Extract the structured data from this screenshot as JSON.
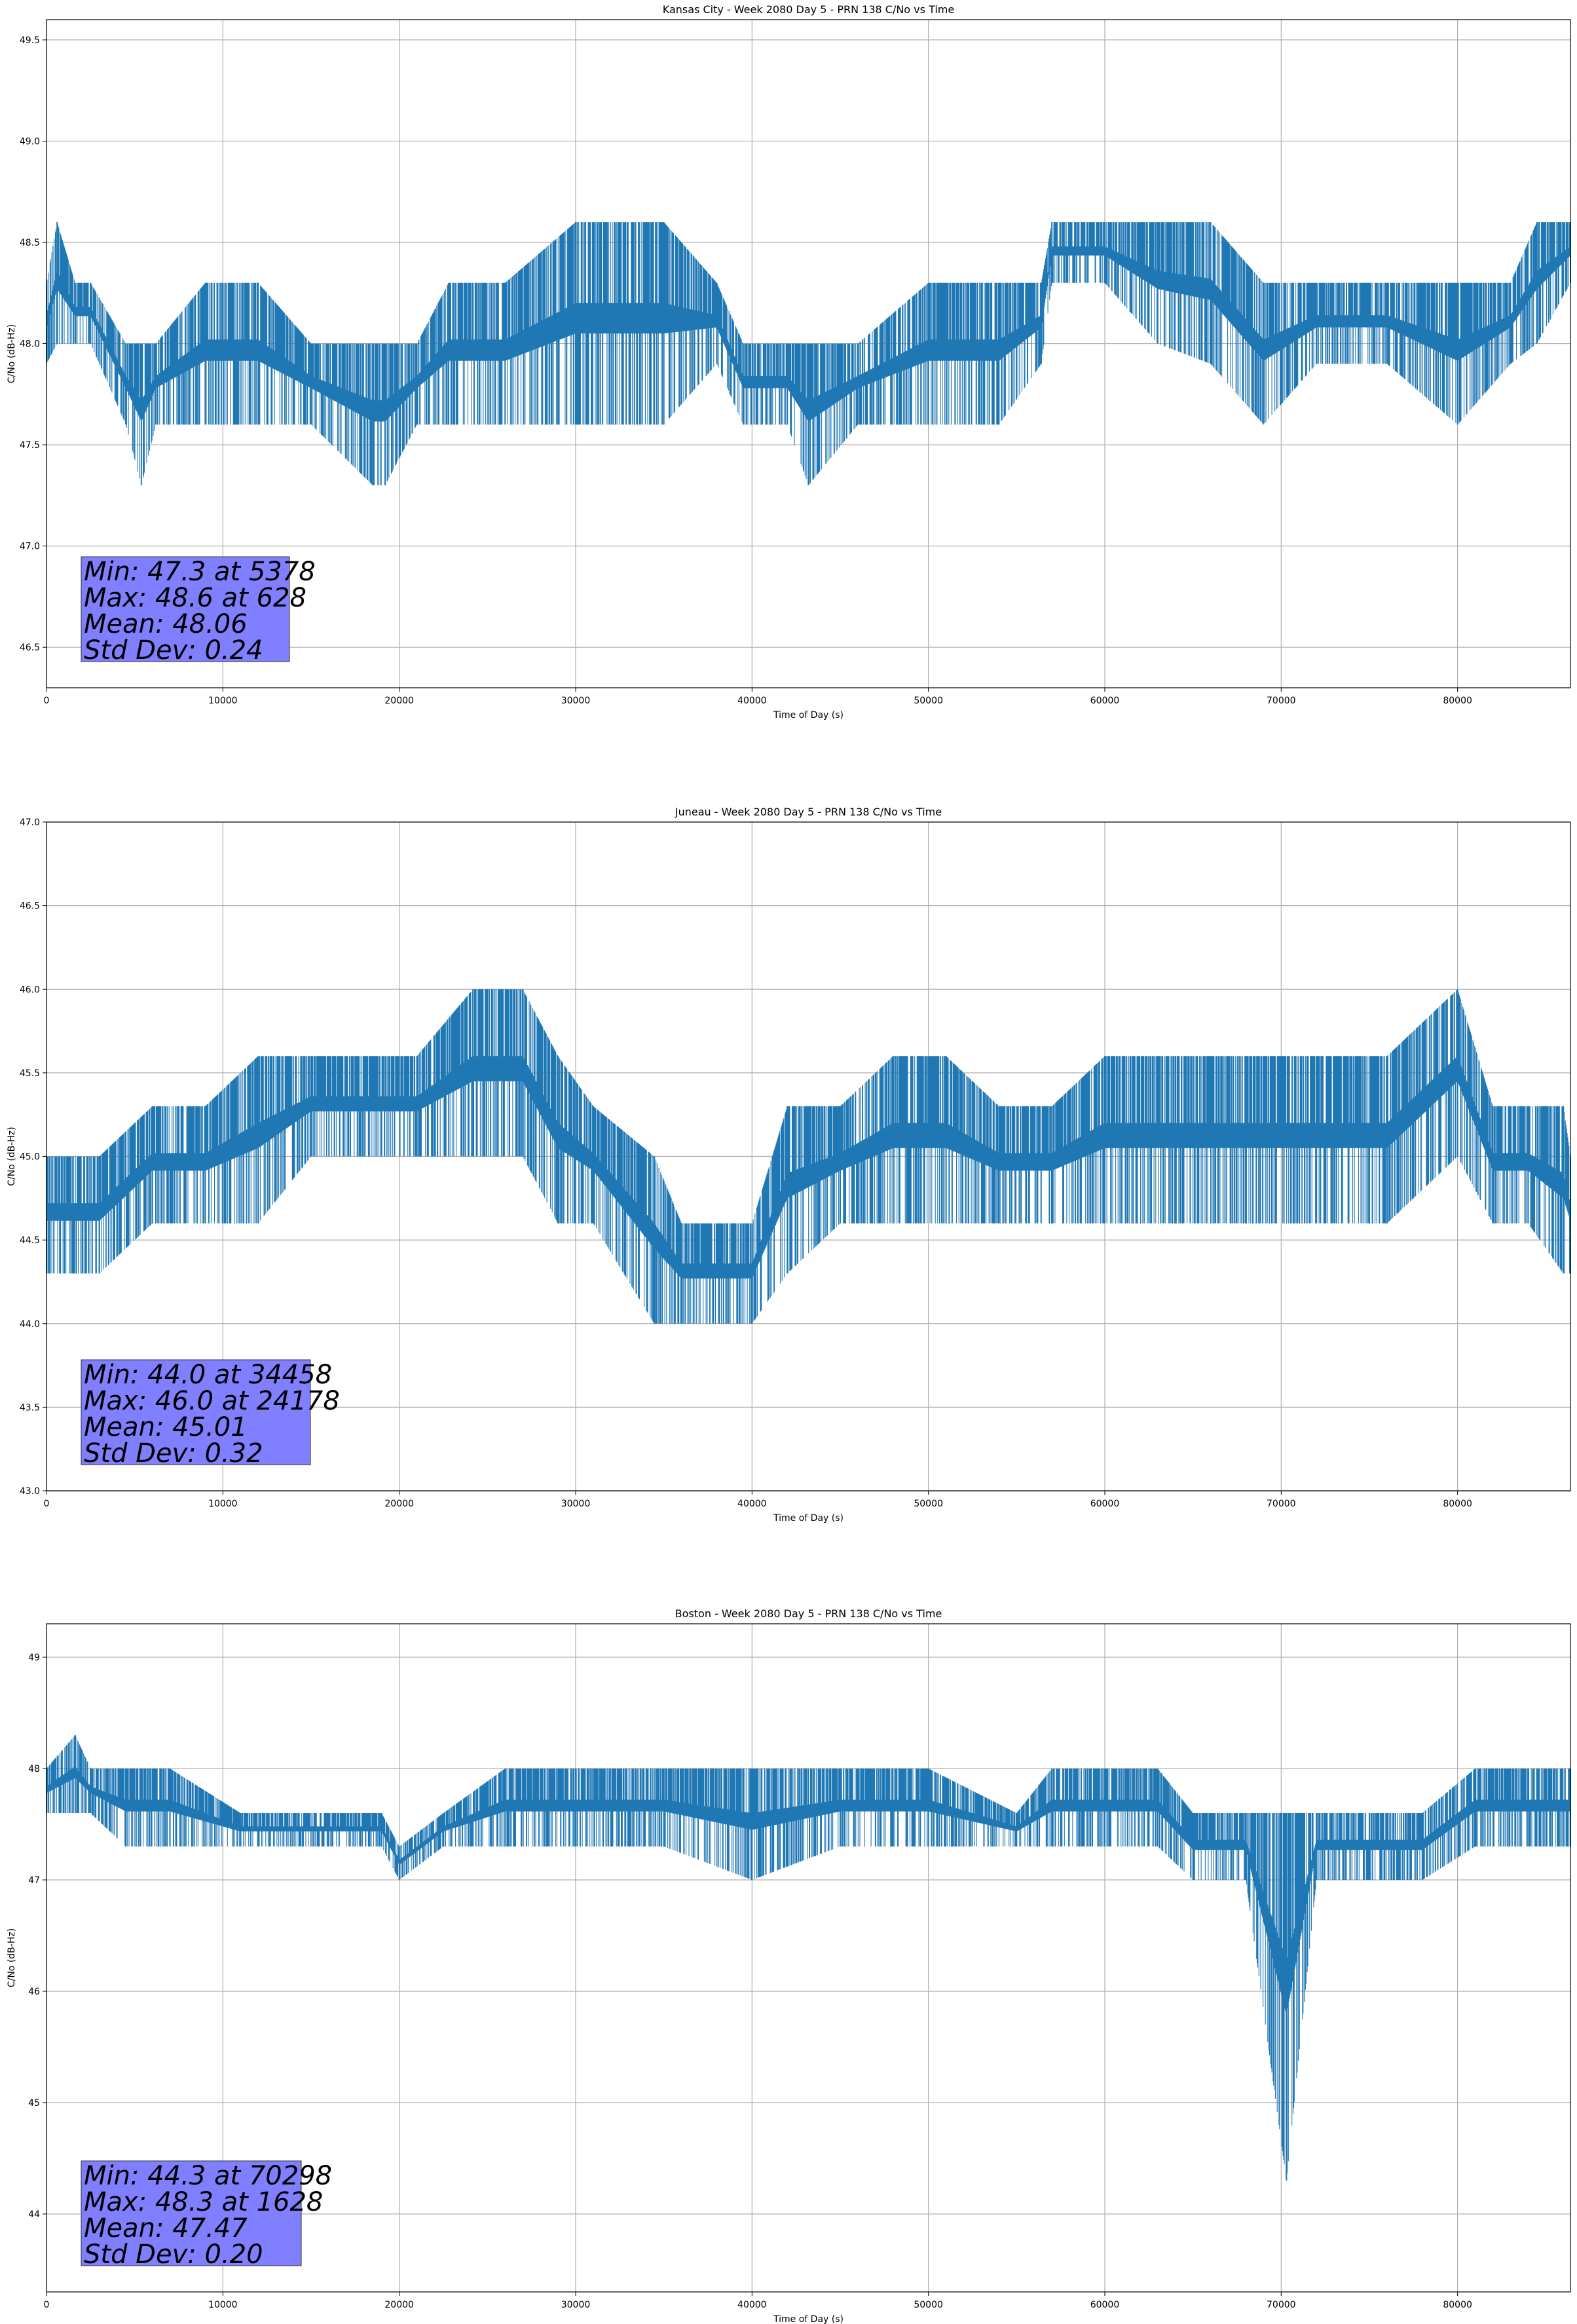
{
  "chart_data": [
    {
      "type": "line",
      "title": "Kansas City - Week 2080 Day 5 - PRN 138 C/No vs Time",
      "xlabel": "Time of Day (s)",
      "ylabel": "C/No (dB-Hz)",
      "xlim": [
        0,
        86400
      ],
      "ylim": [
        46.3,
        49.6
      ],
      "xticks": [
        0,
        10000,
        20000,
        30000,
        40000,
        50000,
        60000,
        70000,
        80000
      ],
      "yticks": [
        "46.5",
        "47.0",
        "47.5",
        "48.0",
        "48.5",
        "49.0",
        "49.5"
      ],
      "grid": true,
      "color": "#1f77b4",
      "series": [
        {
          "x": [
            0,
            600,
            1628,
            2500,
            4500,
            5378,
            6200,
            9000,
            12000,
            15000,
            18500,
            19200,
            21000,
            22800,
            26000,
            30000,
            35000,
            38000,
            39500,
            42000,
            43200,
            46000,
            50000,
            54000,
            56400,
            57000,
            60000,
            63000,
            66000,
            69000,
            72000,
            76000,
            80000,
            83000,
            84500,
            86400
          ],
          "low": [
            47.9,
            48.0,
            48.0,
            48.0,
            47.6,
            47.3,
            47.6,
            47.6,
            47.6,
            47.6,
            47.3,
            47.3,
            47.6,
            47.6,
            47.6,
            47.6,
            47.6,
            47.9,
            47.6,
            47.6,
            47.3,
            47.6,
            47.6,
            47.6,
            47.9,
            48.3,
            48.3,
            48.0,
            47.9,
            47.6,
            47.9,
            47.9,
            47.6,
            47.9,
            48.0,
            48.3
          ],
          "high": [
            48.3,
            48.6,
            48.3,
            48.3,
            48.0,
            48.0,
            48.0,
            48.3,
            48.3,
            48.0,
            48.0,
            48.0,
            48.0,
            48.3,
            48.3,
            48.6,
            48.6,
            48.3,
            48.0,
            48.0,
            48.0,
            48.0,
            48.3,
            48.3,
            48.3,
            48.6,
            48.6,
            48.6,
            48.6,
            48.3,
            48.3,
            48.3,
            48.3,
            48.3,
            48.6,
            48.6
          ]
        }
      ],
      "stats": [
        "Min: 47.3 at 5378",
        "Max: 48.6 at 628",
        "Mean: 48.06",
        "Std Dev: 0.24"
      ]
    },
    {
      "type": "line",
      "title": "Juneau - Week 2080 Day 5 - PRN 138 C/No vs Time",
      "xlabel": "Time of Day (s)",
      "ylabel": "C/No (dB-Hz)",
      "xlim": [
        0,
        86400
      ],
      "ylim": [
        43.0,
        47.0
      ],
      "xticks": [
        0,
        10000,
        20000,
        30000,
        40000,
        50000,
        60000,
        70000,
        80000
      ],
      "yticks": [
        "43.0",
        "43.5",
        "44.0",
        "44.5",
        "45.0",
        "45.5",
        "46.0",
        "46.5",
        "47.0"
      ],
      "grid": true,
      "color": "#1f77b4",
      "series": [
        {
          "x": [
            0,
            3000,
            6000,
            9000,
            12000,
            15000,
            18000,
            21000,
            24178,
            27000,
            29000,
            31000,
            34458,
            36000,
            40000,
            42000,
            45000,
            48000,
            51000,
            54000,
            57000,
            60000,
            64000,
            68000,
            72000,
            76000,
            80000,
            82000,
            84000,
            86000,
            86400
          ],
          "low": [
            44.3,
            44.3,
            44.6,
            44.6,
            44.6,
            45.0,
            45.0,
            45.0,
            45.0,
            45.0,
            44.6,
            44.6,
            44.0,
            44.0,
            44.0,
            44.3,
            44.6,
            44.6,
            44.6,
            44.6,
            44.6,
            44.6,
            44.6,
            44.6,
            44.6,
            44.6,
            45.0,
            44.6,
            44.6,
            44.3,
            44.3
          ],
          "high": [
            45.0,
            45.0,
            45.3,
            45.3,
            45.6,
            45.6,
            45.6,
            45.6,
            46.0,
            46.0,
            45.6,
            45.3,
            45.0,
            44.6,
            44.6,
            45.3,
            45.3,
            45.6,
            45.6,
            45.3,
            45.3,
            45.6,
            45.6,
            45.6,
            45.6,
            45.6,
            46.0,
            45.3,
            45.3,
            45.3,
            45.0
          ]
        }
      ],
      "stats": [
        "Min: 44.0 at 34458",
        "Max: 46.0 at 24178",
        "Mean: 45.01",
        "Std Dev: 0.32"
      ]
    },
    {
      "type": "line",
      "title": "Boston - Week 2080 Day 5 - PRN 138 C/No vs Time",
      "xlabel": "Time of Day (s)",
      "ylabel": "C/No (dB-Hz)",
      "xlim": [
        0,
        86400
      ],
      "ylim": [
        43.3,
        49.3
      ],
      "xticks": [
        0,
        10000,
        20000,
        30000,
        40000,
        50000,
        60000,
        70000,
        80000
      ],
      "yticks": [
        "44",
        "45",
        "46",
        "47",
        "48",
        "49"
      ],
      "grid": true,
      "color": "#1f77b4",
      "series": [
        {
          "x": [
            0,
            1628,
            2500,
            4500,
            7000,
            11000,
            16000,
            19000,
            20000,
            22500,
            26000,
            30000,
            35000,
            40000,
            45000,
            50000,
            55000,
            57000,
            60000,
            63000,
            65000,
            68000,
            70298,
            72000,
            75000,
            78000,
            81000,
            84000,
            86400
          ],
          "low": [
            47.6,
            47.6,
            47.6,
            47.3,
            47.3,
            47.3,
            47.3,
            47.3,
            47.0,
            47.3,
            47.3,
            47.3,
            47.3,
            47.0,
            47.3,
            47.3,
            47.3,
            47.3,
            47.3,
            47.3,
            47.0,
            47.0,
            44.3,
            47.0,
            47.0,
            47.0,
            47.3,
            47.3,
            47.3
          ],
          "high": [
            48.0,
            48.3,
            48.0,
            48.0,
            48.0,
            47.6,
            47.6,
            47.6,
            47.3,
            47.6,
            48.0,
            48.0,
            48.0,
            48.0,
            48.0,
            48.0,
            47.6,
            48.0,
            48.0,
            48.0,
            47.6,
            47.6,
            47.6,
            47.6,
            47.6,
            47.6,
            48.0,
            48.0,
            48.0
          ]
        }
      ],
      "stats": [
        "Min: 44.3 at 70298",
        "Max: 48.3 at 1628",
        "Mean: 47.47",
        "Std Dev: 0.20"
      ]
    }
  ]
}
